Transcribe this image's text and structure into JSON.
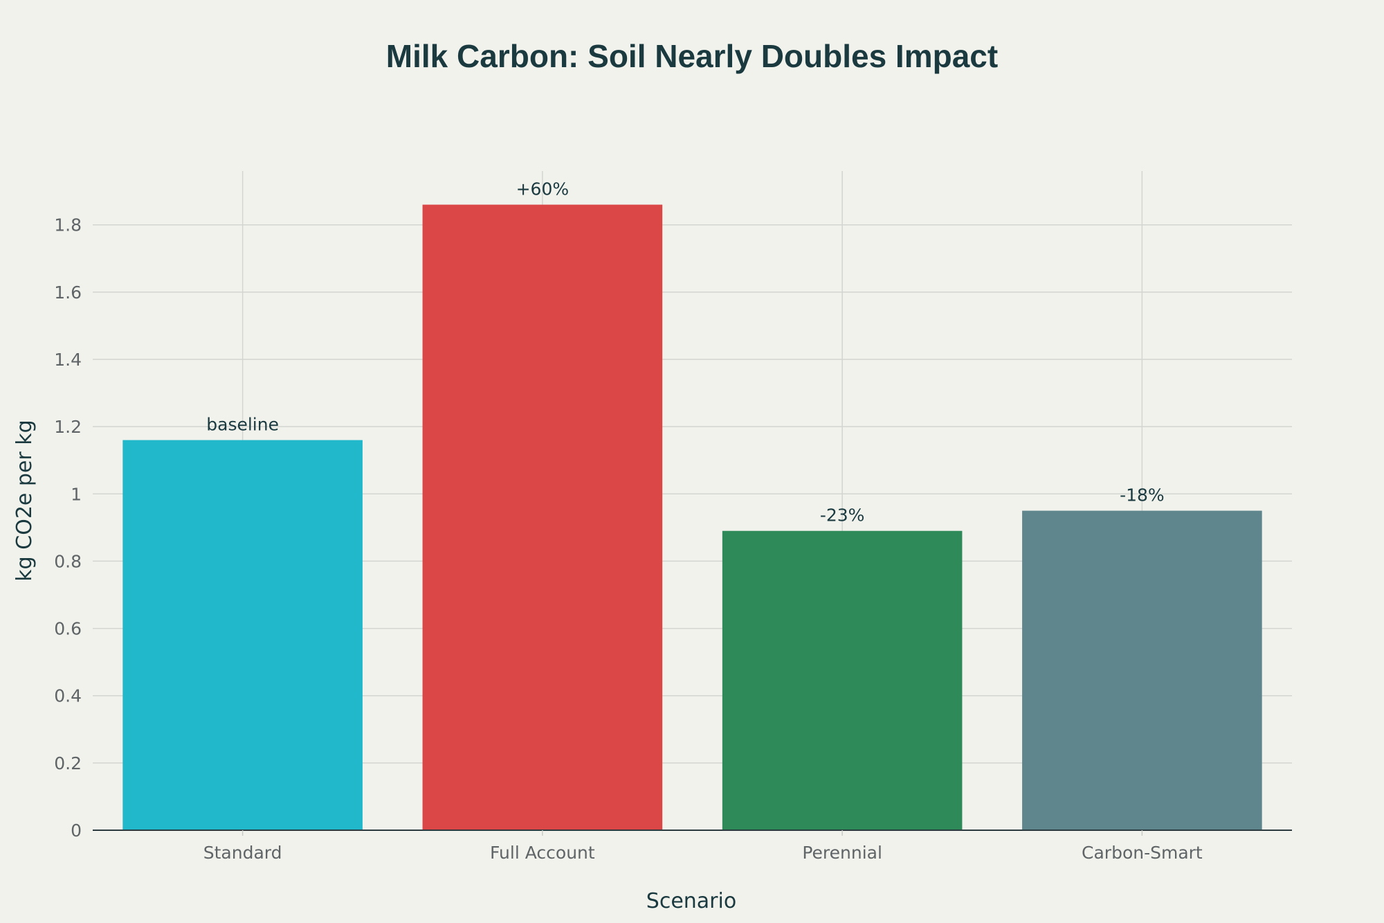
{
  "chart_data": {
    "type": "bar",
    "title": "Milk Carbon: Soil Nearly Doubles Impact",
    "xlabel": "Scenario",
    "ylabel": "kg CO2e per kg",
    "categories": [
      "Standard",
      "Full Account",
      "Perennial",
      "Carbon-Smart"
    ],
    "values": [
      1.16,
      1.86,
      0.89,
      0.95
    ],
    "bar_labels": [
      "baseline",
      "+60%",
      "-23%",
      "-18%"
    ],
    "colors": [
      "#21b8cb",
      "#db4646",
      "#2f8a59",
      "#5f868c"
    ],
    "ylim": [
      0,
      1.96
    ],
    "yticks": [
      0,
      0.2,
      0.4,
      0.6,
      0.8,
      1,
      1.2,
      1.4,
      1.6,
      1.8
    ],
    "ytick_labels": [
      "0",
      "0.2",
      "0.4",
      "0.6",
      "0.8",
      "1",
      "1.2",
      "1.4",
      "1.6",
      "1.8"
    ],
    "grid": true,
    "legend": "none"
  }
}
